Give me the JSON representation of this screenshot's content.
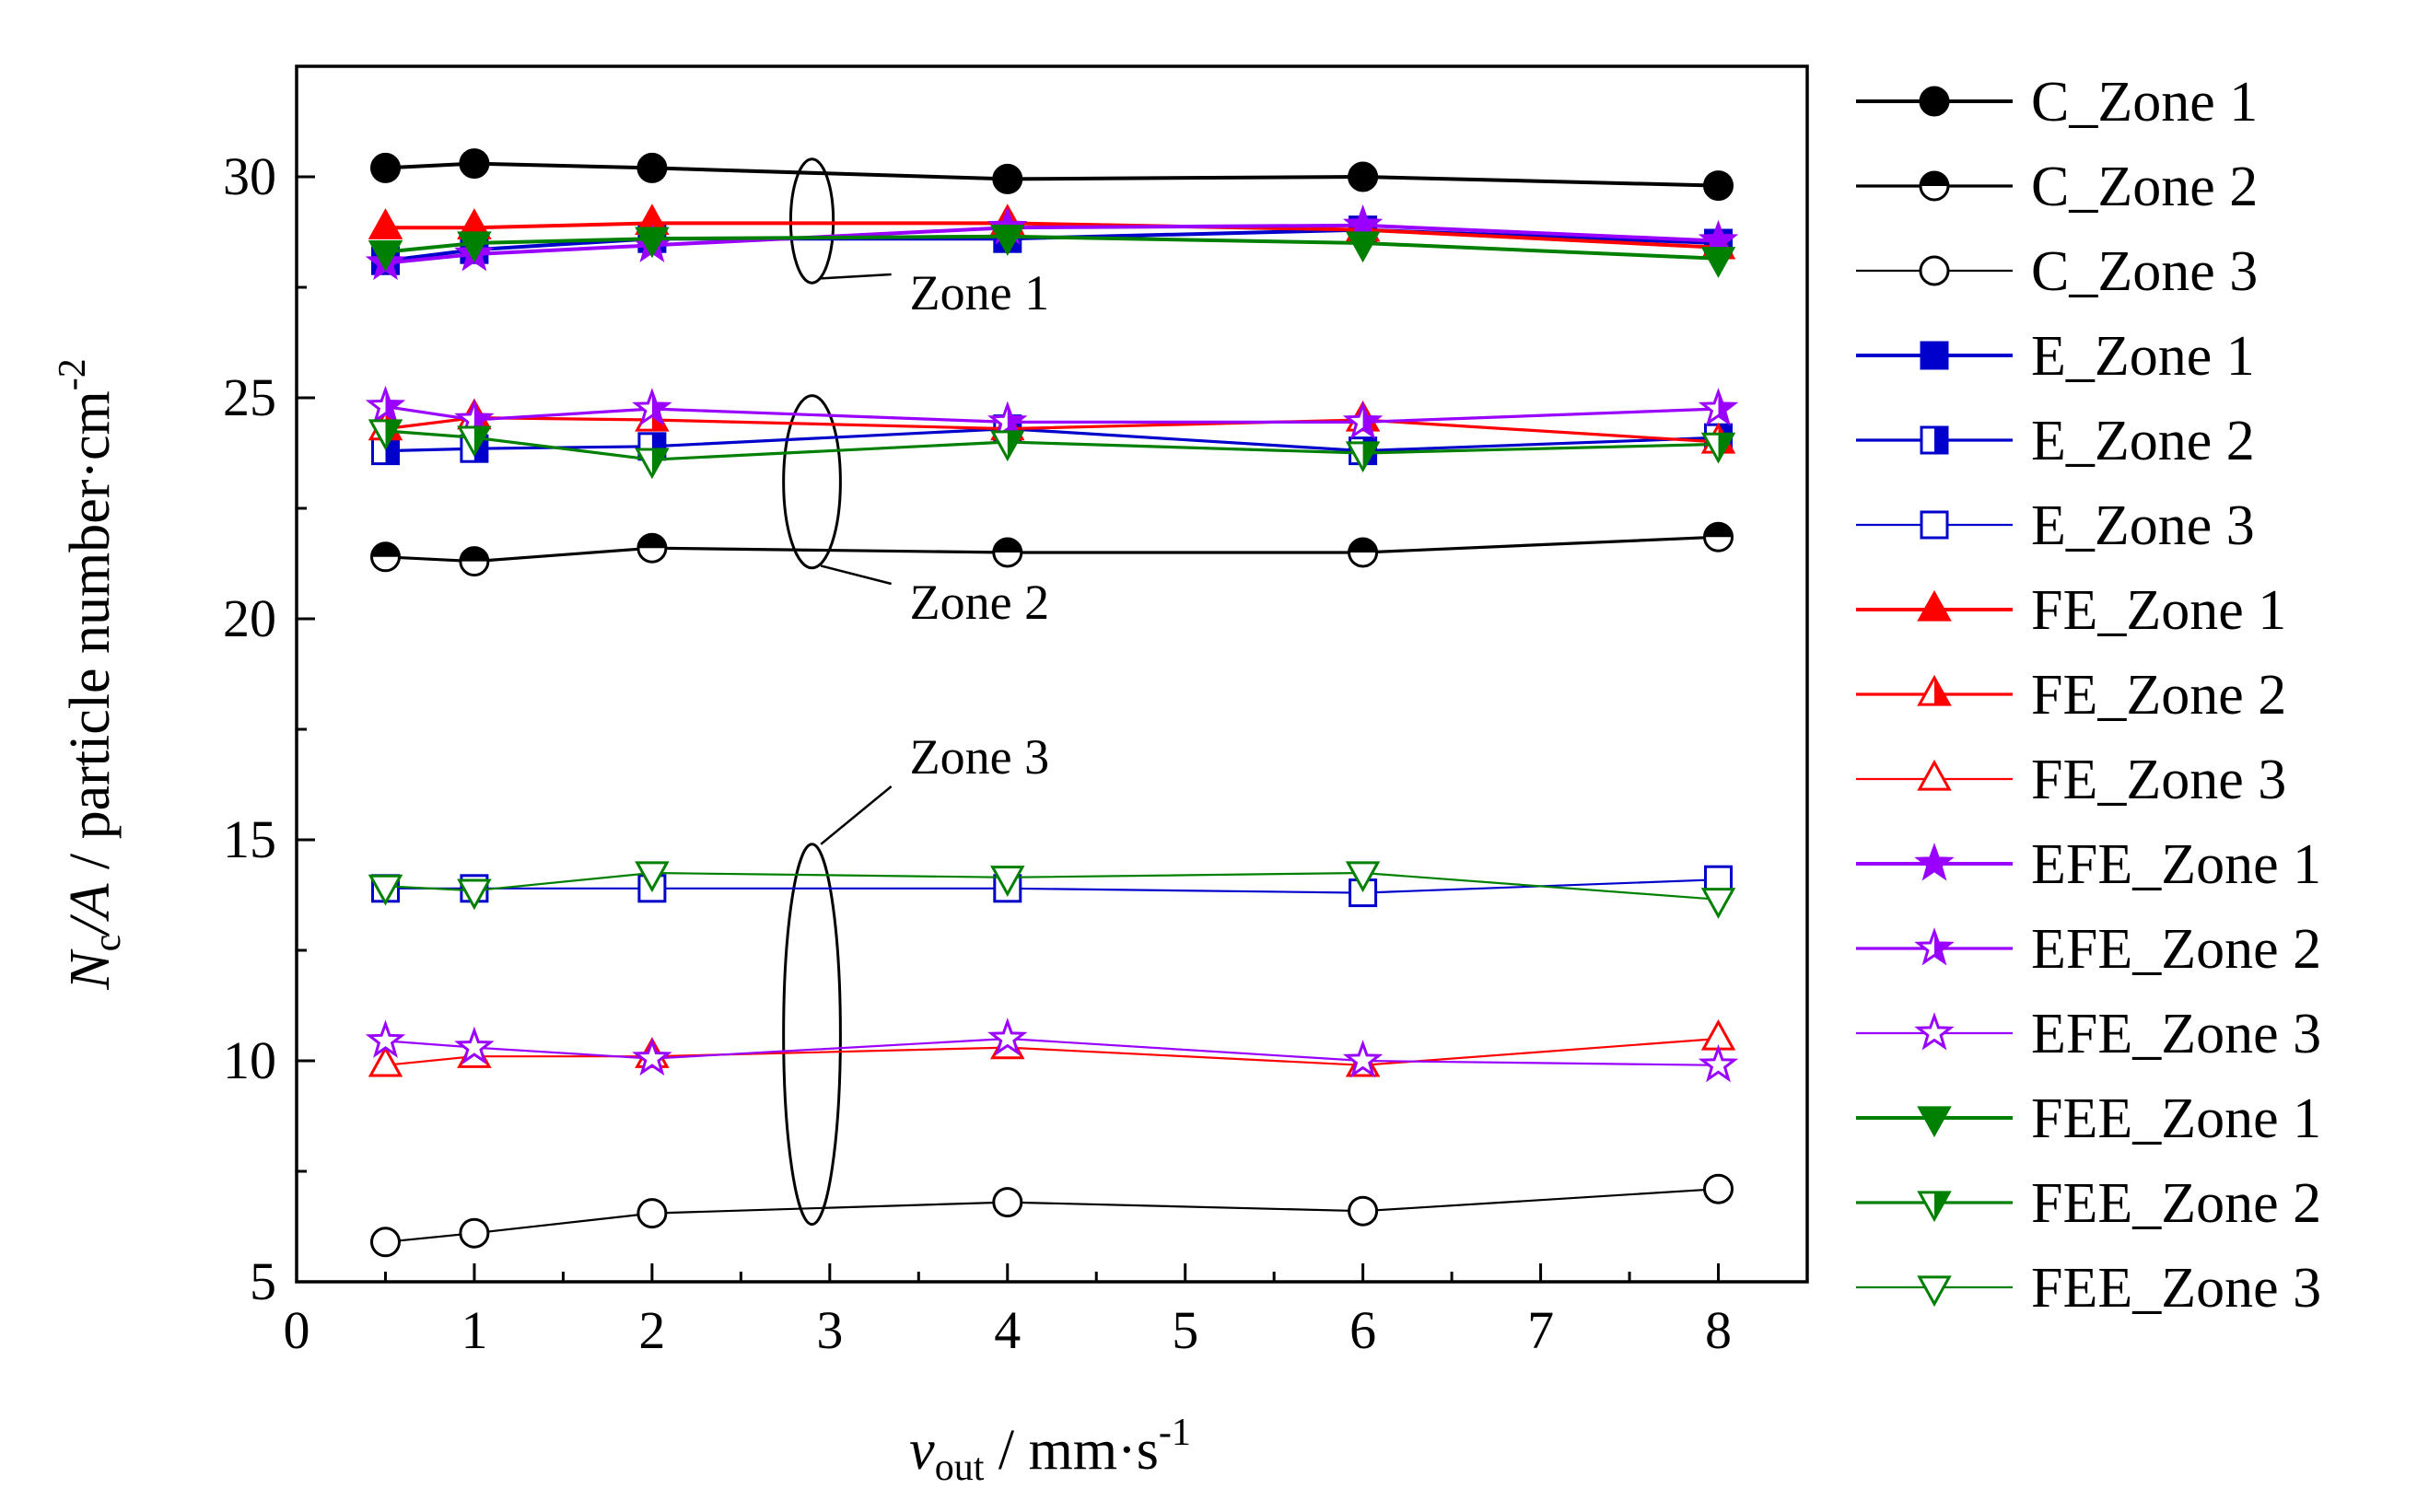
{
  "chart_data": {
    "type": "line",
    "title": "",
    "xlabel": {
      "main": "v",
      "sub": "out",
      "rest": " / mm·s",
      "sup": "-1"
    },
    "ylabel": {
      "main": "N",
      "sub": "c",
      "mid": "/A",
      "rest": " / particle number·cm",
      "sup": "-2"
    },
    "xlim": [
      0,
      8.5
    ],
    "ylim": [
      5,
      32.5
    ],
    "xticks": [
      "0",
      "1",
      "2",
      "3",
      "4",
      "5",
      "6",
      "7",
      "8"
    ],
    "yticks": [
      "5",
      "10",
      "15",
      "20",
      "25",
      "30"
    ],
    "x": [
      0.5,
      1,
      2,
      4,
      6,
      8
    ],
    "legend_position": "right-outside",
    "series": [
      {
        "name": "C_Zone 1",
        "color": "#000000",
        "marker": "circle",
        "fill": "full",
        "values": [
          30.2,
          30.3,
          30.2,
          29.95,
          30.0,
          29.8
        ]
      },
      {
        "name": "C_Zone 2",
        "color": "#000000",
        "marker": "circle",
        "fill": "half",
        "values": [
          21.4,
          21.3,
          21.6,
          21.5,
          21.5,
          21.85
        ]
      },
      {
        "name": "C_Zone 3",
        "color": "#000000",
        "marker": "circle",
        "fill": "open",
        "values": [
          5.9,
          6.1,
          6.55,
          6.8,
          6.6,
          7.1
        ]
      },
      {
        "name": "E_Zone 1",
        "color": "#0000CC",
        "marker": "square",
        "fill": "full",
        "values": [
          28.1,
          28.35,
          28.6,
          28.6,
          28.8,
          28.5
        ]
      },
      {
        "name": "E_Zone 2",
        "color": "#0000CC",
        "marker": "square",
        "fill": "half",
        "values": [
          23.8,
          23.85,
          23.9,
          24.3,
          23.8,
          24.1
        ]
      },
      {
        "name": "E_Zone 3",
        "color": "#0000CC",
        "marker": "square",
        "fill": "open",
        "values": [
          13.9,
          13.9,
          13.9,
          13.9,
          13.8,
          14.1
        ]
      },
      {
        "name": "FE_Zone 1",
        "color": "#FF0000",
        "marker": "triangle",
        "fill": "full",
        "values": [
          28.85,
          28.85,
          28.95,
          28.95,
          28.8,
          28.4
        ]
      },
      {
        "name": "FE_Zone 2",
        "color": "#FF0000",
        "marker": "triangle",
        "fill": "half",
        "values": [
          24.3,
          24.55,
          24.5,
          24.3,
          24.5,
          24.0
        ]
      },
      {
        "name": "FE_Zone 3",
        "color": "#FF0000",
        "marker": "triangle",
        "fill": "open",
        "values": [
          9.9,
          10.1,
          10.1,
          10.3,
          9.9,
          10.5
        ]
      },
      {
        "name": "EFE_Zone 1",
        "color": "#9900FF",
        "marker": "star",
        "fill": "full",
        "values": [
          28.05,
          28.25,
          28.45,
          28.85,
          28.9,
          28.55
        ]
      },
      {
        "name": "EFE_Zone 2",
        "color": "#9900FF",
        "marker": "star",
        "fill": "half",
        "values": [
          24.8,
          24.5,
          24.75,
          24.45,
          24.45,
          24.75
        ]
      },
      {
        "name": "EFE_Zone 3",
        "color": "#9900FF",
        "marker": "star",
        "fill": "open",
        "values": [
          10.45,
          10.3,
          10.05,
          10.5,
          10.0,
          9.9
        ]
      },
      {
        "name": "FEE_Zone 1",
        "color": "#008000",
        "marker": "tri-down",
        "fill": "full",
        "values": [
          28.3,
          28.5,
          28.6,
          28.65,
          28.5,
          28.15
        ]
      },
      {
        "name": "FEE_Zone 2",
        "color": "#008000",
        "marker": "tri-down",
        "fill": "half",
        "values": [
          24.25,
          24.1,
          23.6,
          24.0,
          23.75,
          23.95
        ]
      },
      {
        "name": "FEE_Zone 3",
        "color": "#008000",
        "marker": "tri-down",
        "fill": "open",
        "values": [
          13.95,
          13.85,
          14.25,
          14.15,
          14.25,
          13.65
        ]
      }
    ],
    "annotations": [
      {
        "label": "Zone 1",
        "ellipse": {
          "x": 2.9,
          "y": 29.0,
          "rx": 0.12,
          "ry": 1.4
        },
        "text_at": {
          "x": 3.45,
          "y": 27.0
        },
        "leader_from": {
          "x": 2.95,
          "y": 27.7
        }
      },
      {
        "label": "Zone 2",
        "ellipse": {
          "x": 2.9,
          "y": 23.1,
          "rx": 0.16,
          "ry": 1.95
        },
        "text_at": {
          "x": 3.45,
          "y": 20.0
        },
        "leader_from": {
          "x": 2.95,
          "y": 21.2
        }
      },
      {
        "label": "Zone 3",
        "ellipse": {
          "x": 2.9,
          "y": 10.6,
          "rx": 0.16,
          "ry": 4.3
        },
        "text_at": {
          "x": 3.45,
          "y": 16.5
        },
        "leader_from": {
          "x": 2.95,
          "y": 14.9
        }
      }
    ]
  }
}
